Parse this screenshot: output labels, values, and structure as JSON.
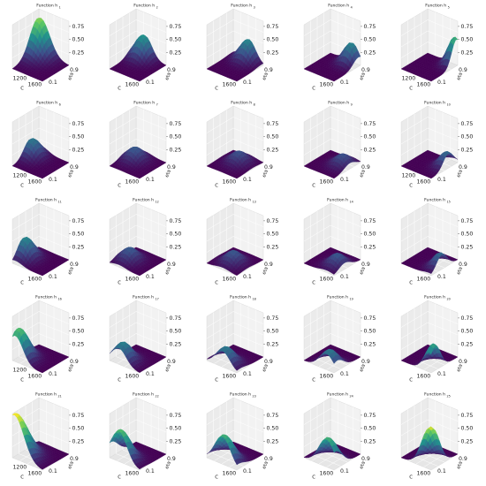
{
  "figure": {
    "rows": 5,
    "cols": 5,
    "cmap": [
      "#440154",
      "#3b528b",
      "#21918c",
      "#5ec962",
      "#fde725"
    ]
  },
  "chart_data": {
    "type": "surface",
    "panel_count": 25,
    "x_axis": {
      "label": "C",
      "ticks": [
        1200,
        1600
      ],
      "range": [
        1000,
        1800
      ]
    },
    "y_axis": {
      "label": "eta",
      "ticks": [
        0.9,
        0.1
      ],
      "range": [
        0.0,
        1.0
      ]
    },
    "z_axis": {
      "ticks": [
        0.25,
        0.5,
        0.75
      ],
      "tick_labels": [
        "0.25",
        "0.50",
        "0.75"
      ],
      "range": [
        0,
        0.85
      ]
    },
    "panels": [
      {
        "title": "Function h",
        "sub": "1",
        "peak": {
          "x": 1050,
          "y": 0.95
        },
        "height": 0.7,
        "spread": 0.3,
        "show_x_first": true
      },
      {
        "title": "Function h",
        "sub": "2",
        "peak": {
          "x": 1250,
          "y": 0.9
        },
        "height": 0.45,
        "spread": 0.22,
        "show_x_first": false
      },
      {
        "title": "Function h",
        "sub": "3",
        "peak": {
          "x": 1420,
          "y": 0.95
        },
        "height": 0.4,
        "spread": 0.22,
        "show_x_first": false
      },
      {
        "title": "Function h",
        "sub": "4",
        "peak": {
          "x": 1600,
          "y": 0.92
        },
        "height": 0.4,
        "spread": 0.2,
        "show_x_first": false
      },
      {
        "title": "Function h",
        "sub": "5",
        "peak": {
          "x": 1750,
          "y": 0.95
        },
        "height": 0.55,
        "spread": 0.18,
        "show_x_first": true
      },
      {
        "title": "Function h",
        "sub": "6",
        "peak": {
          "x": 1080,
          "y": 0.65
        },
        "height": 0.35,
        "spread": 0.22,
        "show_x_first": true
      },
      {
        "title": "Function h",
        "sub": "7",
        "peak": {
          "x": 1250,
          "y": 0.6
        },
        "height": 0.25,
        "spread": 0.22,
        "show_x_first": false
      },
      {
        "title": "Function h",
        "sub": "8",
        "peak": {
          "x": 1420,
          "y": 0.6
        },
        "height": 0.22,
        "spread": 0.22,
        "show_x_first": false
      },
      {
        "title": "Function h",
        "sub": "9",
        "peak": {
          "x": 1600,
          "y": 0.6
        },
        "height": 0.22,
        "spread": 0.22,
        "show_x_first": false
      },
      {
        "title": "Function h",
        "sub": "10",
        "peak": {
          "x": 1750,
          "y": 0.65
        },
        "height": 0.3,
        "spread": 0.2,
        "show_x_first": true
      },
      {
        "title": "Function h",
        "sub": "11",
        "peak": {
          "x": 1080,
          "y": 0.4
        },
        "height": 0.4,
        "spread": 0.22,
        "show_x_first": false
      },
      {
        "title": "Function h",
        "sub": "12",
        "peak": {
          "x": 1250,
          "y": 0.4
        },
        "height": 0.25,
        "spread": 0.22,
        "show_x_first": false
      },
      {
        "title": "Function h",
        "sub": "13",
        "peak": {
          "x": 1420,
          "y": 0.4
        },
        "height": 0.24,
        "spread": 0.22,
        "show_x_first": false
      },
      {
        "title": "Function h",
        "sub": "14",
        "peak": {
          "x": 1600,
          "y": 0.4
        },
        "height": 0.24,
        "spread": 0.22,
        "show_x_first": false
      },
      {
        "title": "Function h",
        "sub": "15",
        "peak": {
          "x": 1750,
          "y": 0.4
        },
        "height": 0.3,
        "spread": 0.2,
        "show_x_first": false
      },
      {
        "title": "Function h",
        "sub": "16",
        "peak": {
          "x": 1080,
          "y": 0.15
        },
        "height": 0.6,
        "spread": 0.25,
        "show_x_first": true
      },
      {
        "title": "Function h",
        "sub": "17",
        "peak": {
          "x": 1250,
          "y": 0.15
        },
        "height": 0.38,
        "spread": 0.24,
        "show_x_first": false
      },
      {
        "title": "Function h",
        "sub": "18",
        "peak": {
          "x": 1420,
          "y": 0.12
        },
        "height": 0.35,
        "spread": 0.24,
        "show_x_first": false
      },
      {
        "title": "Function h",
        "sub": "19",
        "peak": {
          "x": 1600,
          "y": 0.12
        },
        "height": 0.35,
        "spread": 0.24,
        "show_x_first": false
      },
      {
        "title": "Function h",
        "sub": "20",
        "peak": {
          "x": 1750,
          "y": 0.15
        },
        "height": 0.5,
        "spread": 0.2,
        "show_x_first": false
      },
      {
        "title": "Function h",
        "sub": "21",
        "peak": {
          "x": 1050,
          "y": 0.05
        },
        "height": 0.85,
        "spread": 0.32,
        "show_x_first": true
      },
      {
        "title": "Function h",
        "sub": "22",
        "peak": {
          "x": 1250,
          "y": 0.05
        },
        "height": 0.6,
        "spread": 0.26,
        "show_x_first": false
      },
      {
        "title": "Function h",
        "sub": "23",
        "peak": {
          "x": 1420,
          "y": 0.05
        },
        "height": 0.55,
        "spread": 0.26,
        "show_x_first": false
      },
      {
        "title": "Function h",
        "sub": "24",
        "peak": {
          "x": 1600,
          "y": 0.05
        },
        "height": 0.55,
        "spread": 0.26,
        "show_x_first": false
      },
      {
        "title": "Function h",
        "sub": "25",
        "peak": {
          "x": 1750,
          "y": 0.05
        },
        "height": 0.8,
        "spread": 0.26,
        "show_x_first": false
      }
    ]
  }
}
